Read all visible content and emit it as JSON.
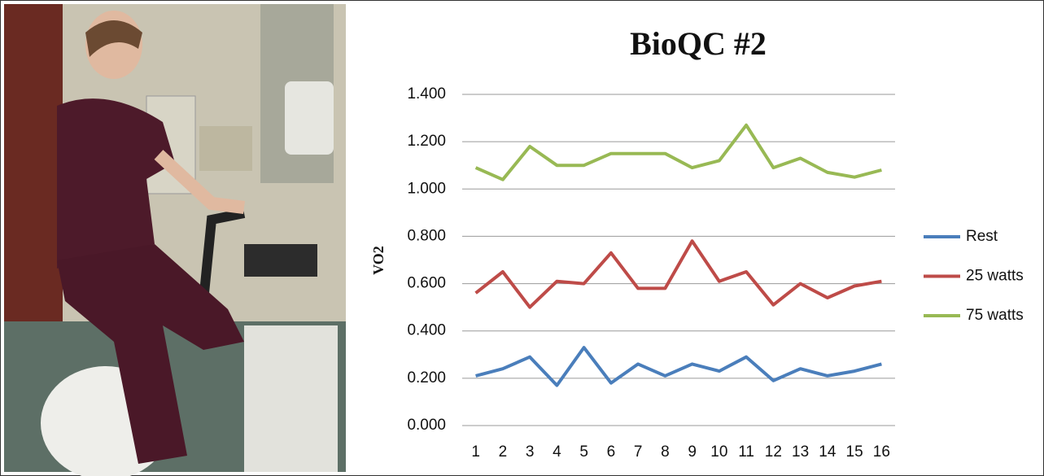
{
  "chart_data": {
    "type": "line",
    "title": "BioQC #2",
    "y_label": "VO2",
    "categories": [
      "1",
      "2",
      "3",
      "4",
      "5",
      "6",
      "7",
      "8",
      "9",
      "10",
      "11",
      "12",
      "13",
      "14",
      "15",
      "16"
    ],
    "series": [
      {
        "name": "Rest",
        "color": "#4a7ebb",
        "values": [
          0.21,
          0.24,
          0.29,
          0.17,
          0.33,
          0.18,
          0.26,
          0.21,
          0.26,
          0.23,
          0.29,
          0.19,
          0.24,
          0.21,
          0.23,
          0.26
        ]
      },
      {
        "name": "25 watts",
        "color": "#be4b48",
        "values": [
          0.56,
          0.65,
          0.5,
          0.61,
          0.6,
          0.73,
          0.58,
          0.58,
          0.78,
          0.61,
          0.65,
          0.51,
          0.6,
          0.54,
          0.59,
          0.61
        ]
      },
      {
        "name": "75 watts",
        "color": "#98b954",
        "values": [
          1.09,
          1.04,
          1.18,
          1.1,
          1.1,
          1.15,
          1.15,
          1.15,
          1.09,
          1.12,
          1.27,
          1.09,
          1.13,
          1.07,
          1.05,
          1.08
        ]
      }
    ],
    "ylim": [
      0,
      1.4
    ],
    "yticks": [
      {
        "value": 0,
        "label": "0.000"
      },
      {
        "value": 0.2,
        "label": "0.200"
      },
      {
        "value": 0.4,
        "label": "0.400"
      },
      {
        "value": 0.6,
        "label": "0.600"
      },
      {
        "value": 0.8,
        "label": "0.800"
      },
      {
        "value": 1.0,
        "label": "1.000"
      },
      {
        "value": 1.2,
        "label": "1.200"
      },
      {
        "value": 1.4,
        "label": "1.400"
      }
    ],
    "grid": true,
    "legend": "right"
  }
}
